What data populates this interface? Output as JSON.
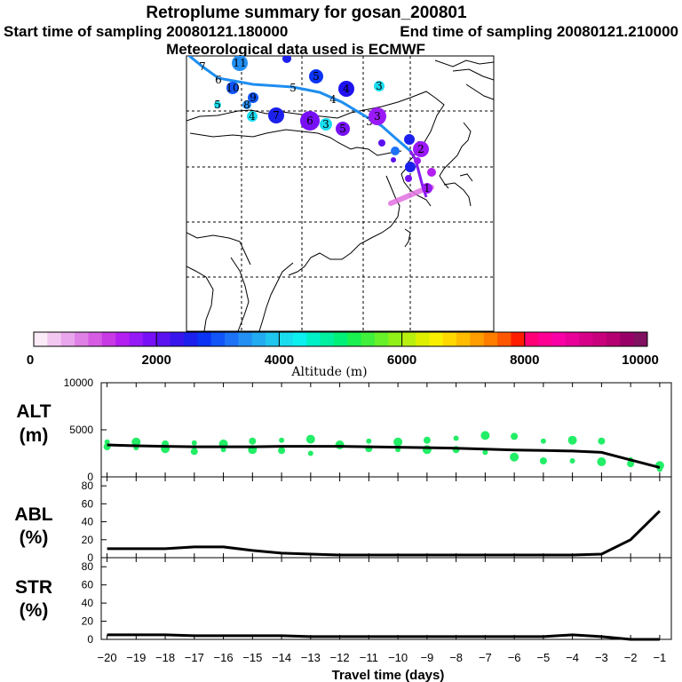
{
  "header": {
    "title": "Retroplume summary for gosan_200801",
    "start_label": "Start time of sampling 20080121.180000",
    "end_label": "End time of sampling 20080121.210000",
    "met_label": "Meteorological data used is ECMWF"
  },
  "colorbar": {
    "label": "Altitude (m)",
    "ticks": [
      "0",
      "2000",
      "4000",
      "6000",
      "8000",
      "10000"
    ],
    "range": [
      0,
      10000
    ],
    "colors": [
      "#fbeaf8",
      "#f2c8f0",
      "#e9a6ec",
      "#df80e6",
      "#d65ce4",
      "#c83ae4",
      "#b21ff0",
      "#961af7",
      "#7710f6",
      "#5a12f0",
      "#3715ec",
      "#1c20ec",
      "#0a33f5",
      "#1154f7",
      "#1e72f5",
      "#2490f3",
      "#22abf0",
      "#1fc6ee",
      "#19ddef",
      "#0df0f0",
      "#00f0c8",
      "#00f0a0",
      "#00f078",
      "#1af050",
      "#40f03c",
      "#68f028",
      "#90f018",
      "#b8f010",
      "#dcf000",
      "#f8f000",
      "#ffd800",
      "#ffbc00",
      "#ff9e00",
      "#ff7e00",
      "#ff5600",
      "#ff1c00",
      "#ff0077",
      "#ff0095",
      "#f800a6",
      "#e80098",
      "#d60088",
      "#c8007c",
      "#b40070",
      "#980068",
      "#801060"
    ]
  },
  "map": {
    "markers": [
      {
        "label": "11",
        "color": "#2490f3"
      },
      {
        "label": "",
        "color": "#1c20ec"
      },
      {
        "label": "5",
        "color": "#0a33f5"
      },
      {
        "label": "4",
        "color": "#1e12f0"
      },
      {
        "label": "3",
        "color": "#19ddef"
      },
      {
        "label": "10",
        "color": "#1154f7"
      },
      {
        "label": "9",
        "color": "#1154f7"
      },
      {
        "label": "8",
        "color": "#2490f3"
      },
      {
        "label": "5",
        "color": "#19ddef"
      },
      {
        "label": "4",
        "color": "#19ddef"
      },
      {
        "label": "7",
        "color": "#1c20ec"
      },
      {
        "label": "6",
        "color": "#7710f6"
      },
      {
        "label": "3",
        "color": "#19ddef"
      },
      {
        "label": "5",
        "color": "#7710f6"
      },
      {
        "label": "3",
        "color": "#9a1af7"
      },
      {
        "label": "",
        "color": "#5a12f0"
      },
      {
        "label": "",
        "color": "#1c20ec"
      },
      {
        "label": "2",
        "color": "#9a1af7"
      },
      {
        "label": "",
        "color": "#1e72f5"
      },
      {
        "label": "",
        "color": "#5a12f0"
      },
      {
        "label": "",
        "color": "#1c20ec"
      },
      {
        "label": "",
        "color": "#9a1af7"
      },
      {
        "label": "",
        "color": "#7710f6"
      },
      {
        "label": "",
        "color": "#b21ff0"
      },
      {
        "label": "1",
        "color": "#9a1af7"
      }
    ],
    "track_labels": [
      "7",
      "6",
      "5",
      "4",
      "3",
      "2",
      "1"
    ],
    "track_color_main": "#1e8ef0",
    "track_color_tail": "#8a1af0",
    "plume_color": "#e070e0"
  },
  "chart_data": [
    {
      "type": "line",
      "panel": "ALT",
      "ylabel": "ALT\n(m)",
      "ylabel_lines": [
        "ALT",
        "(m)"
      ],
      "ylim": [
        0,
        10000
      ],
      "yticks": [
        "10000",
        "5000",
        "0"
      ],
      "yticks_values": [
        10000,
        5000,
        0
      ],
      "xlabel": "Travel time (days)",
      "x": [
        -20,
        -19,
        -18,
        -17,
        -16,
        -15,
        -14,
        -13,
        -12,
        -11,
        -10,
        -9,
        -8,
        -7,
        -6,
        -5,
        -4,
        -3,
        -2,
        -1
      ],
      "series": [
        {
          "name": "mean altitude",
          "color": "#000000",
          "values": [
            3400,
            3300,
            3250,
            3200,
            3200,
            3200,
            3250,
            3250,
            3250,
            3200,
            3150,
            3100,
            3050,
            2950,
            2850,
            2800,
            2750,
            2600,
            1800,
            1000
          ]
        }
      ],
      "scatter_color": "#22ee66",
      "scatter_points": [
        {
          "x": -20,
          "y": 3700
        },
        {
          "x": -20,
          "y": 3200
        },
        {
          "x": -19,
          "y": 3700
        },
        {
          "x": -19,
          "y": 3100
        },
        {
          "x": -18,
          "y": 3500
        },
        {
          "x": -18,
          "y": 3000
        },
        {
          "x": -17,
          "y": 3600
        },
        {
          "x": -17,
          "y": 2700
        },
        {
          "x": -16,
          "y": 3500
        },
        {
          "x": -16,
          "y": 2900
        },
        {
          "x": -15,
          "y": 3800
        },
        {
          "x": -15,
          "y": 2900
        },
        {
          "x": -14,
          "y": 3900
        },
        {
          "x": -14,
          "y": 2800
        },
        {
          "x": -13,
          "y": 4000
        },
        {
          "x": -13,
          "y": 2500
        },
        {
          "x": -12,
          "y": 3400
        },
        {
          "x": -12,
          "y": 3400
        },
        {
          "x": -11,
          "y": 3800
        },
        {
          "x": -11,
          "y": 3000
        },
        {
          "x": -10,
          "y": 3700
        },
        {
          "x": -10,
          "y": 2900
        },
        {
          "x": -9,
          "y": 3900
        },
        {
          "x": -9,
          "y": 2900
        },
        {
          "x": -8,
          "y": 4100
        },
        {
          "x": -8,
          "y": 2900
        },
        {
          "x": -7,
          "y": 4400
        },
        {
          "x": -7,
          "y": 2600
        },
        {
          "x": -6,
          "y": 4300
        },
        {
          "x": -6,
          "y": 2100
        },
        {
          "x": -5,
          "y": 3800
        },
        {
          "x": -5,
          "y": 1700
        },
        {
          "x": -4,
          "y": 3900
        },
        {
          "x": -4,
          "y": 1700
        },
        {
          "x": -3,
          "y": 3800
        },
        {
          "x": -3,
          "y": 1600
        },
        {
          "x": -2,
          "y": 1800
        },
        {
          "x": -2,
          "y": 1400
        },
        {
          "x": -1,
          "y": 1200
        },
        {
          "x": -1,
          "y": 800
        }
      ]
    },
    {
      "type": "line",
      "panel": "ABL",
      "ylabel_lines": [
        "ABL",
        "(%)"
      ],
      "ylim": [
        0,
        90
      ],
      "yticks": [
        "80",
        "60",
        "40",
        "20",
        "0"
      ],
      "yticks_values": [
        80,
        60,
        40,
        20,
        0
      ],
      "x": [
        -20,
        -19,
        -18,
        -17,
        -16,
        -15,
        -14,
        -13,
        -12,
        -11,
        -10,
        -9,
        -8,
        -7,
        -6,
        -5,
        -4,
        -3,
        -2,
        -1
      ],
      "series": [
        {
          "name": "ABL fraction",
          "color": "#000000",
          "values": [
            10,
            10,
            10,
            12,
            12,
            8,
            5,
            4,
            3,
            3,
            3,
            3,
            3,
            3,
            3,
            3,
            3,
            4,
            20,
            52
          ]
        }
      ]
    },
    {
      "type": "line",
      "panel": "STR",
      "ylabel_lines": [
        "STR",
        "(%)"
      ],
      "ylim": [
        0,
        90
      ],
      "yticks": [
        "80",
        "60",
        "40",
        "20",
        "0"
      ],
      "yticks_values": [
        80,
        60,
        40,
        20,
        0
      ],
      "xticks": [
        "−20",
        "−19",
        "−18",
        "−17",
        "−16",
        "−15",
        "−14",
        "−13",
        "−12",
        "−11",
        "−10",
        "−9",
        "−8",
        "−7",
        "−6",
        "−5",
        "−4",
        "−3",
        "−2",
        "−1"
      ],
      "x": [
        -20,
        -19,
        -18,
        -17,
        -16,
        -15,
        -14,
        -13,
        -12,
        -11,
        -10,
        -9,
        -8,
        -7,
        -6,
        -5,
        -4,
        -3,
        -2,
        -1
      ],
      "series": [
        {
          "name": "STR fraction",
          "color": "#000000",
          "values": [
            5,
            5,
            5,
            4,
            4,
            4,
            4,
            3,
            3,
            3,
            3,
            3,
            3,
            3,
            3,
            3,
            5,
            3,
            0,
            0
          ]
        }
      ]
    }
  ]
}
